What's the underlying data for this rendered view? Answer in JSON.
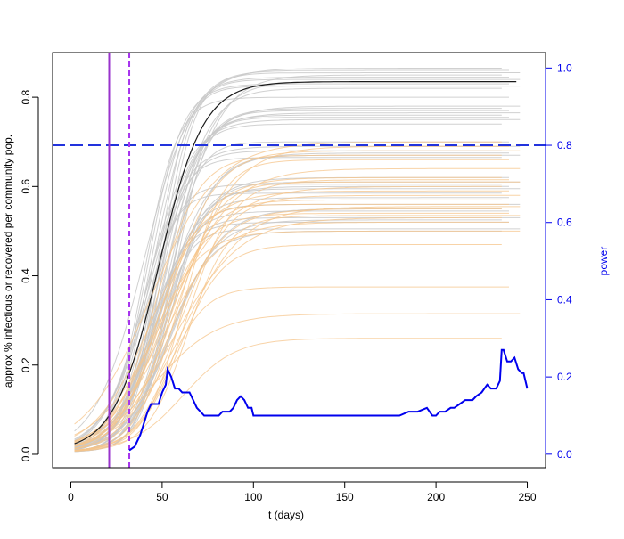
{
  "chart_data": {
    "type": "line",
    "title": "",
    "xlabel": "t (days)",
    "ylabel_left": "approx % infectious or recovered per community pop.",
    "ylabel_right": "power",
    "xlim": [
      -10,
      260
    ],
    "ylim_left": [
      -0.03,
      0.9
    ],
    "ylim_right": [
      -0.035,
      1.04
    ],
    "x_ticks": [
      0,
      50,
      100,
      150,
      200,
      250
    ],
    "y_left_ticks": [
      "0.0",
      "0.2",
      "0.4",
      "0.6",
      "0.8"
    ],
    "y_right_ticks": [
      "0.0",
      "0.2",
      "0.4",
      "0.6",
      "0.8",
      "1.0"
    ],
    "colors": {
      "control_series": "#c8c8c8",
      "treatment_series": "#f5c48a",
      "median_series": "#1a1a1a",
      "power_line": "#0000ee",
      "threshold_line": "#2233dd",
      "vertical_solid": "#9933cc",
      "vertical_dashed": "#a633ee"
    },
    "reference_lines": {
      "power_threshold": 0.8,
      "vertical_solid_x": 21,
      "vertical_dashed_x": 32
    },
    "control_plateaus": [
      0.865,
      0.86,
      0.855,
      0.85,
      0.845,
      0.84,
      0.835,
      0.83,
      0.825,
      0.82,
      0.8,
      0.78,
      0.775,
      0.77,
      0.765,
      0.76,
      0.755,
      0.75,
      0.74,
      0.7,
      0.69,
      0.68,
      0.675,
      0.67,
      0.665,
      0.62,
      0.61,
      0.605,
      0.6,
      0.595,
      0.585,
      0.575,
      0.56,
      0.55,
      0.545,
      0.53,
      0.525,
      0.52,
      0.505,
      0.5
    ],
    "treatment_plateaus": [
      0.7,
      0.69,
      0.68,
      0.67,
      0.66,
      0.64,
      0.62,
      0.615,
      0.61,
      0.6,
      0.59,
      0.58,
      0.57,
      0.56,
      0.555,
      0.55,
      0.54,
      0.535,
      0.53,
      0.52,
      0.5,
      0.47,
      0.375,
      0.315,
      0.26
    ],
    "median_plateau": 0.835,
    "power": {
      "x": [
        32,
        35,
        36,
        38,
        40,
        42,
        44,
        46,
        48,
        50,
        52,
        53,
        55,
        57,
        59,
        61,
        63,
        65,
        67,
        69,
        71,
        73,
        75,
        77,
        79,
        81,
        83,
        85,
        87,
        89,
        91,
        93,
        95,
        97,
        99,
        100,
        110,
        130,
        150,
        170,
        175,
        180,
        185,
        190,
        195,
        198,
        200,
        202,
        205,
        208,
        210,
        213,
        216,
        220,
        222,
        225,
        228,
        230,
        233,
        235,
        236,
        237,
        239,
        241,
        243,
        245,
        247,
        248,
        250
      ],
      "y": [
        0.01,
        0.02,
        0.03,
        0.05,
        0.08,
        0.11,
        0.13,
        0.13,
        0.13,
        0.16,
        0.18,
        0.22,
        0.2,
        0.17,
        0.17,
        0.16,
        0.16,
        0.16,
        0.14,
        0.12,
        0.11,
        0.1,
        0.1,
        0.1,
        0.1,
        0.1,
        0.11,
        0.11,
        0.11,
        0.12,
        0.14,
        0.15,
        0.14,
        0.12,
        0.12,
        0.1,
        0.1,
        0.1,
        0.1,
        0.1,
        0.1,
        0.1,
        0.11,
        0.11,
        0.12,
        0.1,
        0.1,
        0.11,
        0.11,
        0.12,
        0.12,
        0.13,
        0.14,
        0.14,
        0.15,
        0.16,
        0.18,
        0.17,
        0.17,
        0.19,
        0.27,
        0.27,
        0.24,
        0.24,
        0.25,
        0.22,
        0.21,
        0.21,
        0.17
      ]
    }
  }
}
